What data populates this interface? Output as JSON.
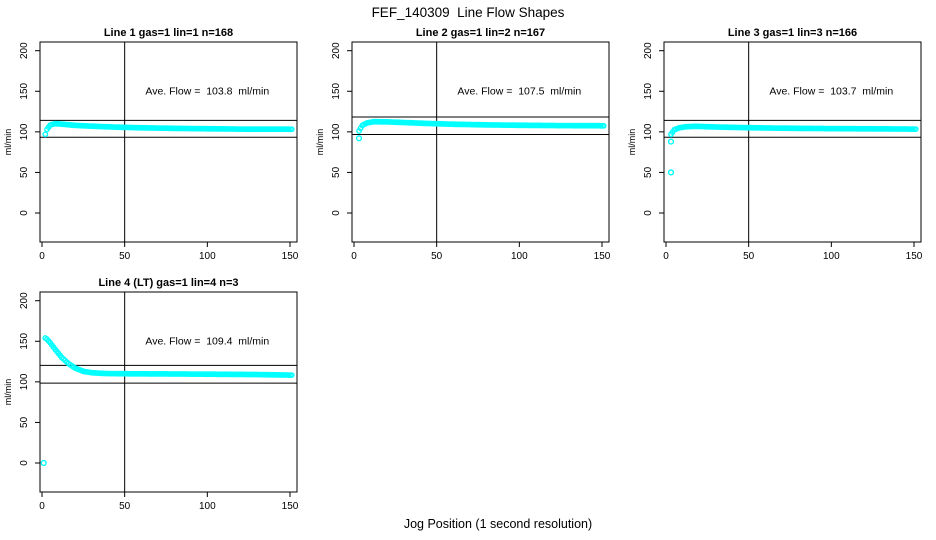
{
  "figure": {
    "title": "FEF_140309  Line Flow Shapes",
    "xlabel": "Jog Position (1 second resolution)",
    "background": "#ffffff",
    "marker": {
      "shape": "open-circle",
      "color": "#00ffff"
    },
    "axis_color": "#000000"
  },
  "chart_data": [
    {
      "type": "scatter",
      "title": "Line 1 gas=1 lin=1 n=168",
      "ylabel": "ml/min",
      "annotation": "Ave. Flow =  103.8  ml/min",
      "ave_flow_ml_min": 103.8,
      "xlim": [
        0,
        150
      ],
      "ylim": [
        0,
        200
      ],
      "xticks": [
        0,
        50,
        100,
        150
      ],
      "yticks": [
        0,
        50,
        100,
        150,
        200
      ],
      "vline_x": 50,
      "hlines": [
        114.2,
        93.4
      ],
      "annotation_pos": {
        "x": 100,
        "y": 150
      },
      "x_start": 2,
      "x_end": 151,
      "x_step": 1,
      "series_keyframes": [
        [
          2,
          97
        ],
        [
          3,
          103
        ],
        [
          5,
          108.5
        ],
        [
          8,
          110
        ],
        [
          12,
          109.5
        ],
        [
          20,
          108
        ],
        [
          30,
          107
        ],
        [
          45,
          105.8
        ],
        [
          60,
          105
        ],
        [
          80,
          104.3
        ],
        [
          100,
          103.8
        ],
        [
          125,
          103.3
        ],
        [
          151,
          103.2
        ]
      ],
      "outliers": []
    },
    {
      "type": "scatter",
      "title": "Line 2 gas=1 lin=2 n=167",
      "ylabel": "ml/min",
      "annotation": "Ave. Flow =  107.5  ml/min",
      "ave_flow_ml_min": 107.5,
      "xlim": [
        0,
        150
      ],
      "ylim": [
        0,
        200
      ],
      "xticks": [
        0,
        50,
        100,
        150
      ],
      "yticks": [
        0,
        50,
        100,
        150,
        200
      ],
      "vline_x": 50,
      "hlines": [
        118.3,
        96.8
      ],
      "annotation_pos": {
        "x": 100,
        "y": 150
      },
      "x_start": 3,
      "x_end": 151,
      "x_step": 1,
      "series_keyframes": [
        [
          3,
          101
        ],
        [
          5,
          108
        ],
        [
          8,
          111
        ],
        [
          12,
          112.5
        ],
        [
          20,
          112.3
        ],
        [
          30,
          111.5
        ],
        [
          45,
          110.3
        ],
        [
          60,
          109.4
        ],
        [
          80,
          108.6
        ],
        [
          100,
          108.1
        ],
        [
          125,
          107.7
        ],
        [
          151,
          107.5
        ]
      ],
      "outliers": [
        [
          3,
          92
        ]
      ]
    },
    {
      "type": "scatter",
      "title": "Line 3 gas=1 lin=3 n=166",
      "ylabel": "ml/min",
      "annotation": "Ave. Flow =  103.7  ml/min",
      "ave_flow_ml_min": 103.7,
      "xlim": [
        0,
        150
      ],
      "ylim": [
        0,
        200
      ],
      "xticks": [
        0,
        50,
        100,
        150
      ],
      "yticks": [
        0,
        50,
        100,
        150,
        200
      ],
      "vline_x": 50,
      "hlines": [
        114.1,
        93.3
      ],
      "annotation_pos": {
        "x": 100,
        "y": 150
      },
      "x_start": 3,
      "x_end": 151,
      "x_step": 1,
      "series_keyframes": [
        [
          3,
          97
        ],
        [
          5,
          102.5
        ],
        [
          8,
          105
        ],
        [
          12,
          106.3
        ],
        [
          18,
          106.8
        ],
        [
          30,
          106
        ],
        [
          45,
          105.3
        ],
        [
          60,
          104.8
        ],
        [
          80,
          104.3
        ],
        [
          100,
          104
        ],
        [
          125,
          103.7
        ],
        [
          151,
          103.4
        ]
      ],
      "outliers": [
        [
          3,
          88
        ],
        [
          3,
          50
        ]
      ]
    },
    {
      "type": "scatter",
      "title": "Line 4 (LT) gas=1 lin=4 n=3",
      "ylabel": "ml/min",
      "annotation": "Ave. Flow =  109.4  ml/min",
      "ave_flow_ml_min": 109.4,
      "xlim": [
        0,
        150
      ],
      "ylim": [
        0,
        200
      ],
      "xticks": [
        0,
        50,
        100,
        150
      ],
      "yticks": [
        0,
        50,
        100,
        150,
        200
      ],
      "vline_x": 50,
      "hlines": [
        120.3,
        98.5
      ],
      "annotation_pos": {
        "x": 100,
        "y": 150
      },
      "x_start": 2,
      "x_end": 151,
      "x_step": 1,
      "series_keyframes": [
        [
          2,
          154
        ],
        [
          3,
          152.5
        ],
        [
          5,
          148
        ],
        [
          8,
          140
        ],
        [
          12,
          130
        ],
        [
          16,
          122.5
        ],
        [
          20,
          117
        ],
        [
          25,
          113
        ],
        [
          30,
          111.3
        ],
        [
          38,
          110.3
        ],
        [
          50,
          110
        ],
        [
          70,
          109.8
        ],
        [
          90,
          109.6
        ],
        [
          110,
          109.3
        ],
        [
          130,
          109
        ],
        [
          151,
          108.3
        ]
      ],
      "outliers": [
        [
          1,
          0
        ]
      ]
    }
  ]
}
